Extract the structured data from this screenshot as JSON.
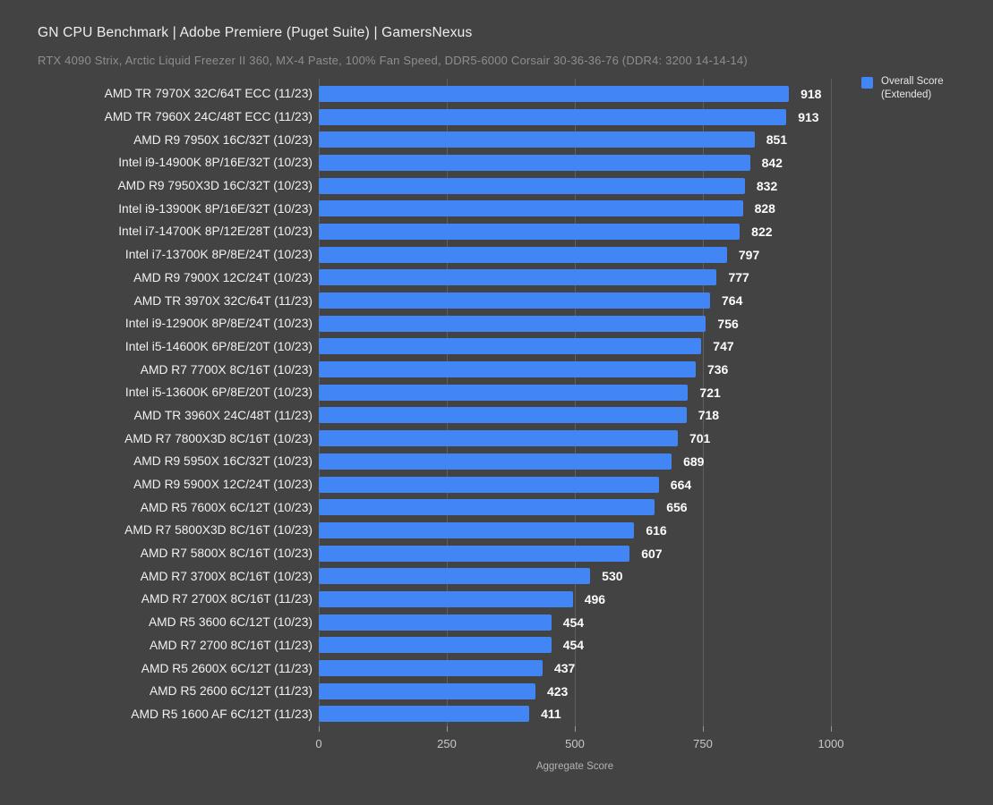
{
  "title": "GN CPU Benchmark | Adobe Premiere (Puget Suite) | GamersNexus",
  "subtitle": "RTX 4090 Strix, Arctic Liquid Freezer II 360, MX-4 Paste, 100% Fan Speed, DDR5-6000 Corsair 30-36-36-76 (DDR4: 3200 14-14-14)",
  "legend": {
    "line1": "Overall Score",
    "line2": "(Extended)",
    "position": "top-right"
  },
  "colors": {
    "background": "#434343",
    "bar": "#4285f4",
    "gridline": "#5f5f5f"
  },
  "chart_data": {
    "type": "bar",
    "orientation": "horizontal",
    "title": "GN CPU Benchmark | Adobe Premiere (Puget Suite) | GamersNexus",
    "subtitle": "RTX 4090 Strix, Arctic Liquid Freezer II 360, MX-4 Paste, 100% Fan Speed, DDR5-6000 Corsair 30-36-36-76 (DDR4: 3200 14-14-14)",
    "series_name": "Overall Score (Extended)",
    "xlabel": "Aggregate Score",
    "xlim": [
      0,
      1000
    ],
    "xticks": [
      0,
      250,
      500,
      750,
      1000
    ],
    "grid": true,
    "value_labels": true,
    "categories": [
      "AMD TR 7970X 32C/64T ECC (11/23)",
      "AMD TR 7960X 24C/48T ECC (11/23)",
      "AMD R9 7950X 16C/32T (10/23)",
      "Intel i9-14900K 8P/16E/32T (10/23)",
      "AMD R9 7950X3D 16C/32T (10/23)",
      "Intel i9-13900K 8P/16E/32T (10/23)",
      "Intel i7-14700K 8P/12E/28T (10/23)",
      "Intel i7-13700K 8P/8E/24T (10/23)",
      "AMD R9 7900X 12C/24T (10/23)",
      "AMD TR 3970X 32C/64T (11/23)",
      "Intel i9-12900K 8P/8E/24T (10/23)",
      "Intel i5-14600K 6P/8E/20T (10/23)",
      "AMD R7 7700X 8C/16T (10/23)",
      "Intel i5-13600K 6P/8E/20T (10/23)",
      "AMD TR 3960X 24C/48T (11/23)",
      "AMD R7 7800X3D 8C/16T (10/23)",
      "AMD R9 5950X 16C/32T (10/23)",
      "AMD R9 5900X 12C/24T (10/23)",
      "AMD R5 7600X 6C/12T (10/23)",
      "AMD R7 5800X3D 8C/16T (10/23)",
      "AMD R7 5800X 8C/16T (10/23)",
      "AMD R7 3700X 8C/16T (10/23)",
      "AMD R7 2700X 8C/16T (11/23)",
      "AMD R5 3600 6C/12T (10/23)",
      "AMD R7 2700 8C/16T (11/23)",
      "AMD R5 2600X 6C/12T (11/23)",
      "AMD R5 2600 6C/12T (11/23)",
      "AMD R5 1600 AF 6C/12T (11/23)"
    ],
    "values": [
      918,
      913,
      851,
      842,
      832,
      828,
      822,
      797,
      777,
      764,
      756,
      747,
      736,
      721,
      718,
      701,
      689,
      664,
      656,
      616,
      607,
      530,
      496,
      454,
      454,
      437,
      423,
      411
    ]
  }
}
